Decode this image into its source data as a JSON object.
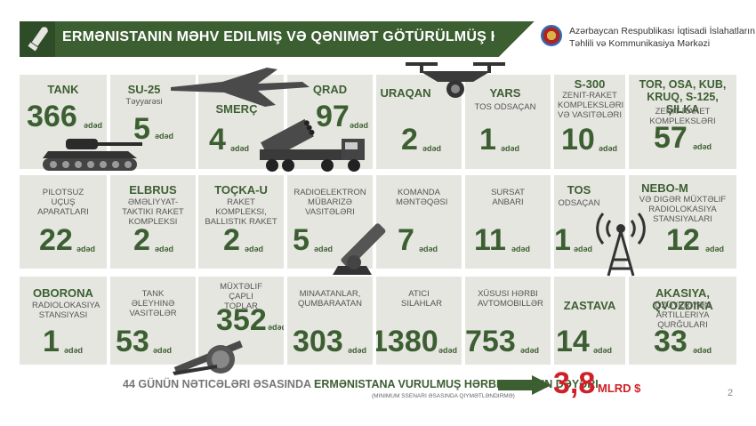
{
  "header": {
    "title": "ERMƏNISTANIN MƏHV EDILMIŞ VƏ QƏNIMƏT GÖTÜRÜLMÜŞ HƏRBI TEXNIKASI",
    "org_line1": "Azərbaycan Respublikası İqtisadi İslahatların",
    "org_line2": "Təhlili və Kommunikasiya Mərkəzi"
  },
  "unit": "ədəd",
  "items": [
    {
      "label": "TANK",
      "sub": "",
      "value": "366"
    },
    {
      "label": "SU-25",
      "sub": "Təyyarəsi",
      "value": "5"
    },
    {
      "label": "SMERÇ",
      "sub": "",
      "value": "4"
    },
    {
      "label": "QRAD",
      "sub": "",
      "value": "97"
    },
    {
      "label": "URAQAN",
      "sub": "",
      "value": "2"
    },
    {
      "label": "YARS",
      "sub": "TOS ODSAÇAN",
      "value": "1"
    },
    {
      "label": "S-300",
      "sub": "ZENIT-RAKET KOMPLEKSLƏRI VƏ VASITƏLƏRI",
      "value": "10"
    },
    {
      "label": "TOR, OSA, KUB, KRUQ, S-125, ŞILKA",
      "sub": "ZENIT-RAKET KOMPLEKSLƏRI",
      "value": "57"
    },
    {
      "label": "",
      "sub": "PILOTSUZ UÇUŞ APARATLARI",
      "value": "22"
    },
    {
      "label": "ELBRUS",
      "sub": "ƏMƏLIYYAT-TAKTIKI RAKET KOMPLEKSI",
      "value": "2"
    },
    {
      "label": "TOÇKA-U",
      "sub": "RAKET KOMPLEKSI, BALLISTIK RAKET",
      "value": "2"
    },
    {
      "label": "",
      "sub": "RADIOELEKTRON MÜBARIZƏ VASITƏLƏRI",
      "value": "5"
    },
    {
      "label": "",
      "sub": "KOMANDA MƏNTƏQƏSI",
      "value": "7"
    },
    {
      "label": "",
      "sub": "SURSAT ANBARI",
      "value": "11"
    },
    {
      "label": "TOS",
      "sub": "ODSAÇAN",
      "value": "1"
    },
    {
      "label": "NEBO-M",
      "sub": "VƏ DIGƏR MÜXTƏLIF RADIOLOKASIYA STANSIYALARI",
      "value": "12"
    },
    {
      "label": "OBORONA",
      "sub": "RADIOLOKASIYA STANSIYASI",
      "value": "1"
    },
    {
      "label": "",
      "sub": "TANK ƏLEYHINƏ VASITƏLƏR",
      "value": "53"
    },
    {
      "label": "",
      "sub": "MÜXTƏLIF ÇAPLI TOPLAR",
      "value": "352"
    },
    {
      "label": "",
      "sub": "MINAATANLAR, QUMBARAATAN",
      "value": "303"
    },
    {
      "label": "",
      "sub": "ATICI SILAHLAR",
      "value": "1380"
    },
    {
      "label": "",
      "sub": "XÜSUSI HƏRBI AVTOMOBILLƏR",
      "value": "753"
    },
    {
      "label": "ZASTAVA",
      "sub": "",
      "value": "14"
    },
    {
      "label": "AKASIYA, QVOZDIKA",
      "sub": "ÖZÜYERIYƏN ARTILLERIYA QURĞULARI",
      "value": "33"
    }
  ],
  "footer": {
    "text_part1": "44 GÜNÜN NƏTICƏLƏRI ƏSASINDA",
    "text_part2": "ERMƏNISTANA VURULMUŞ HƏRBI ZƏRƏRIN DƏYƏRI",
    "note": "(MINIMUM SSENARI ƏSASINDA QIYMƏTLƏNDIRMƏ)",
    "total": "3,8",
    "total_unit": "MLRD $",
    "page": "2"
  },
  "colors": {
    "accent": "#3c5f32",
    "cell_bg": "#e6e6e0",
    "total": "#cf2027"
  }
}
